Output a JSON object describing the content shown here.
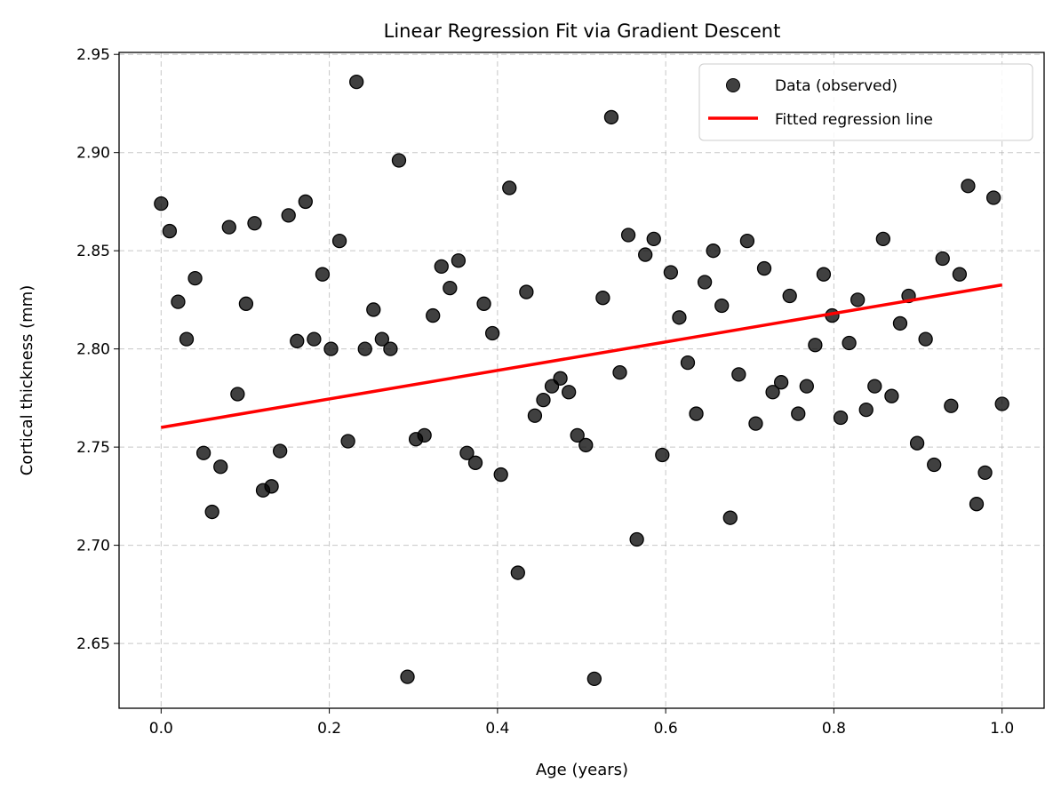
{
  "chart_data": {
    "type": "scatter",
    "title": "Linear Regression Fit via Gradient Descent",
    "xlabel": "Age (years)",
    "ylabel": "Cortical thickness (mm)",
    "xlim": [
      -0.05,
      1.05
    ],
    "ylim": [
      2.617,
      2.951
    ],
    "grid": true,
    "legend_placement": "top-right",
    "xticks": [
      "0.0",
      "0.2",
      "0.4",
      "0.6",
      "0.8",
      "1.0"
    ],
    "xtick_values": [
      0,
      0.2,
      0.4,
      0.6,
      0.8,
      1.0
    ],
    "yticks": [
      "2.65",
      "2.70",
      "2.75",
      "2.80",
      "2.85",
      "2.90",
      "2.95"
    ],
    "ytick_values": [
      2.65,
      2.7,
      2.75,
      2.8,
      2.85,
      2.9,
      2.95
    ],
    "series": [
      {
        "name": "Data (observed)",
        "kind": "scatter",
        "color": "#000000",
        "y": [
          2.874,
          2.86,
          2.824,
          2.805,
          2.836,
          2.747,
          2.717,
          2.74,
          2.862,
          2.777,
          2.823,
          2.864,
          2.728,
          2.73,
          2.748,
          2.868,
          2.804,
          2.875,
          2.805,
          2.838,
          2.8,
          2.855,
          2.753,
          2.936,
          2.8,
          2.82,
          2.805,
          2.8,
          2.896,
          2.633,
          2.754,
          2.756,
          2.817,
          2.842,
          2.831,
          2.845,
          2.747,
          2.742,
          2.823,
          2.808,
          2.736,
          2.882,
          2.686,
          2.829,
          2.766,
          2.774,
          2.781,
          2.785,
          2.778,
          2.756,
          2.751,
          2.632,
          2.826,
          2.918,
          2.788,
          2.858,
          2.703,
          2.848,
          2.856,
          2.746,
          2.839,
          2.816,
          2.793,
          2.767,
          2.834,
          2.85,
          2.822,
          2.714,
          2.787,
          2.855,
          2.762,
          2.841,
          2.778,
          2.783,
          2.827,
          2.767,
          2.781,
          2.802,
          2.838,
          2.817,
          2.765,
          2.803,
          2.825,
          2.769,
          2.781,
          2.856,
          2.776,
          2.813,
          2.827,
          2.752,
          2.805,
          2.741,
          2.846,
          2.771,
          2.838,
          2.883,
          2.721,
          2.737,
          2.877,
          2.772
        ],
        "x_note": "x evenly spaced from 0 to 1 (100 points)"
      },
      {
        "name": "Fitted regression line",
        "kind": "line",
        "color": "#ff0000",
        "x": [
          0,
          1
        ],
        "y": [
          2.76,
          2.8326
        ]
      }
    ]
  }
}
